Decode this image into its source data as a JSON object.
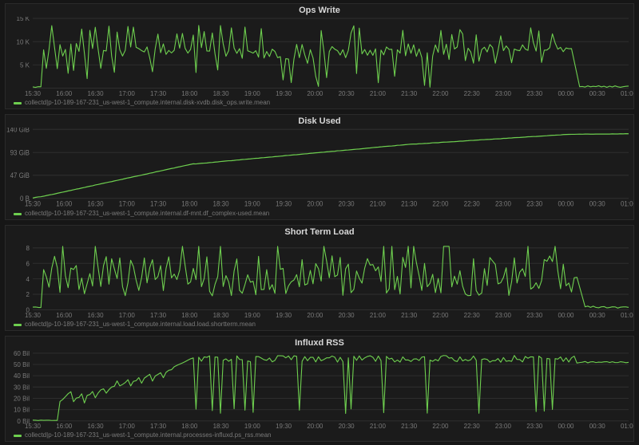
{
  "global": {
    "background_color": "#161616",
    "panel_background": "#1b1b1b",
    "panel_border": "#2a2a2a",
    "grid_color": "#2e2e2e",
    "text_color": "#d0d0d0",
    "axis_label_color": "#7a7a7a",
    "series_color": "#6ecf4f",
    "font_family": "Helvetica, Arial, sans-serif",
    "title_fontsize": 11,
    "axis_fontsize": 8,
    "line_width": 1.1
  },
  "time_axis": {
    "ticks": [
      "15:30",
      "16:00",
      "16:30",
      "17:00",
      "17:30",
      "18:00",
      "18:30",
      "19:00",
      "19:30",
      "20:00",
      "20:30",
      "21:00",
      "21:30",
      "22:00",
      "22:30",
      "23:00",
      "23:30",
      "00:00",
      "00:30",
      "01:00"
    ],
    "n_points": 220
  },
  "panels": [
    {
      "id": "ops-write",
      "title": "Ops Write",
      "type": "line",
      "legend": "collectd|p-10-189-167-231_us-west-1_compute.internal.disk-xvdb.disk_ops.write.mean",
      "y": {
        "ticks": [
          0,
          5000,
          10000,
          15000
        ],
        "tick_labels": [
          "",
          "5 K",
          "10 K",
          "15 K"
        ],
        "min": 0,
        "max": 15000
      },
      "series": {
        "segments": [
          {
            "from_i": 0,
            "to_i": 3,
            "mode": "flat",
            "base": 300,
            "jitter": 150
          },
          {
            "from_i": 3,
            "to_i": 4,
            "mode": "step",
            "from": 300,
            "to": 8000
          },
          {
            "from_i": 4,
            "to_i": 90,
            "mode": "spiky",
            "base": 8000,
            "amp_up": 5500,
            "amp_down": 6000,
            "density": 0.9
          },
          {
            "from_i": 90,
            "to_i": 102,
            "mode": "spiky",
            "base": 6500,
            "amp_up": 4000,
            "amp_down": 6300,
            "density": 0.85
          },
          {
            "from_i": 102,
            "to_i": 148,
            "mode": "spiky",
            "base": 8000,
            "amp_up": 5500,
            "amp_down": 7800,
            "density": 0.88
          },
          {
            "from_i": 148,
            "to_i": 198,
            "mode": "spiky",
            "base": 8500,
            "amp_up": 4500,
            "amp_down": 3500,
            "density": 0.75
          },
          {
            "from_i": 198,
            "to_i": 202,
            "mode": "step",
            "from": 8500,
            "to": 300
          },
          {
            "from_i": 202,
            "to_i": 220,
            "mode": "flat",
            "base": 350,
            "jitter": 200
          }
        ]
      }
    },
    {
      "id": "disk-used",
      "title": "Disk Used",
      "type": "line",
      "legend": "collectd|p-10-189-167-231_us-west-1_compute.internal.df-mnt.df_complex-used.mean",
      "y": {
        "ticks": [
          0,
          47,
          93,
          140
        ],
        "tick_labels": [
          "0 B",
          "47 GiB",
          "93 GiB",
          "140 GiB"
        ],
        "min": 0,
        "max": 140
      },
      "series": {
        "segments": [
          {
            "from_i": 0,
            "to_i": 3,
            "mode": "ramp",
            "from": 0.5,
            "to": 3
          },
          {
            "from_i": 3,
            "to_i": 60,
            "mode": "ramp",
            "from": 3,
            "to": 70
          },
          {
            "from_i": 60,
            "to_i": 140,
            "mode": "ramp",
            "from": 70,
            "to": 110
          },
          {
            "from_i": 140,
            "to_i": 198,
            "mode": "ramp",
            "from": 110,
            "to": 130
          },
          {
            "from_i": 198,
            "to_i": 220,
            "mode": "ramp",
            "from": 130,
            "to": 131
          }
        ]
      }
    },
    {
      "id": "short-term-load",
      "title": "Short Term Load",
      "type": "line",
      "legend": "collectd|p-10-189-167-231_us-west-1_compute.internal.load.load.shortterm.mean",
      "y": {
        "ticks": [
          0,
          2,
          4,
          6,
          8
        ],
        "tick_labels": [
          "0",
          "2",
          "4",
          "6",
          "8"
        ],
        "min": 0,
        "max": 9
      },
      "series": {
        "segments": [
          {
            "from_i": 0,
            "to_i": 3,
            "mode": "flat",
            "base": 0.3,
            "jitter": 0.1
          },
          {
            "from_i": 3,
            "to_i": 5,
            "mode": "step",
            "from": 0.3,
            "to": 5.2
          },
          {
            "from_i": 5,
            "to_i": 200,
            "mode": "jitter",
            "base": 4.4,
            "amp": 2.6,
            "spike_amp": 3.8,
            "spike_prob": 0.07
          },
          {
            "from_i": 200,
            "to_i": 204,
            "mode": "step",
            "from": 4.2,
            "to": 0.4
          },
          {
            "from_i": 204,
            "to_i": 220,
            "mode": "flat",
            "base": 0.35,
            "jitter": 0.15
          }
        ]
      }
    },
    {
      "id": "influxd-rss",
      "title": "Influxd RSS",
      "type": "line",
      "legend": "collectd|p-10-189-167-231_us-west-1_compute.internal.processes-influxd.ps_rss.mean",
      "y": {
        "ticks": [
          0,
          10,
          20,
          30,
          40,
          50,
          60
        ],
        "tick_labels": [
          "0 Bil",
          "10 Bil",
          "20 Bil",
          "30 Bil",
          "40 Bil",
          "50 Bil",
          "60 Bil"
        ],
        "min": 0,
        "max": 62
      },
      "series": {
        "segments": [
          {
            "from_i": 0,
            "to_i": 10,
            "mode": "flat",
            "base": 0.5,
            "jitter": 0.2
          },
          {
            "from_i": 10,
            "to_i": 52,
            "mode": "sawtooth",
            "from": 18,
            "to": 48,
            "teeth": 10,
            "drop": 11
          },
          {
            "from_i": 52,
            "to_i": 60,
            "mode": "ramp",
            "from": 48,
            "to": 56
          },
          {
            "from_i": 60,
            "to_i": 200,
            "mode": "dips",
            "base": 55,
            "dip_to": 6,
            "dip_prob": 0.11,
            "jitter": 3
          },
          {
            "from_i": 200,
            "to_i": 205,
            "mode": "flat",
            "base": 52,
            "jitter": 1
          },
          {
            "from_i": 205,
            "to_i": 220,
            "mode": "flat",
            "base": 52,
            "jitter": 0.5
          }
        ]
      }
    }
  ]
}
